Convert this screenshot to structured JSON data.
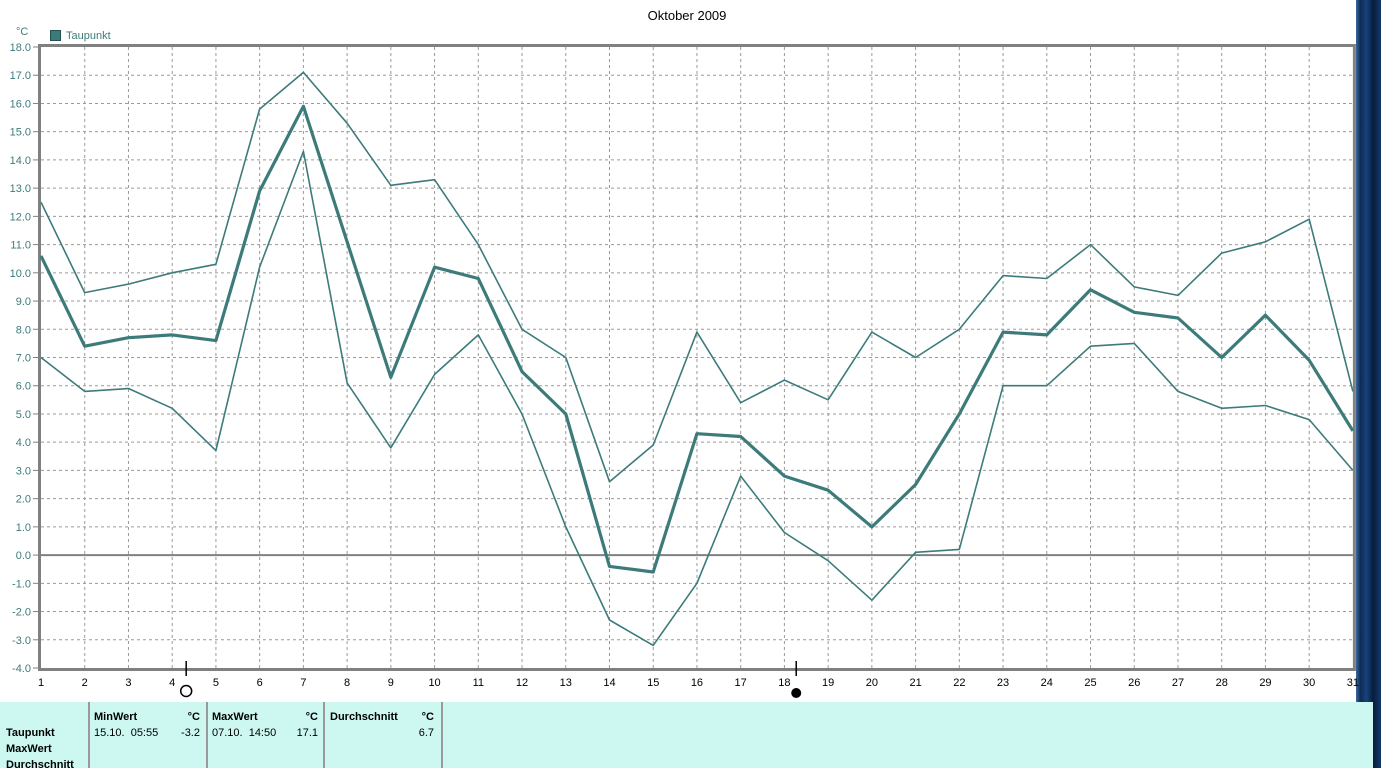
{
  "header": {
    "title": "Oktober 2009",
    "unit_label": "°C"
  },
  "legend": {
    "label": "Taupunkt",
    "color": "#3D7B7B"
  },
  "chart_data": {
    "type": "line",
    "title": "Oktober 2009",
    "ylabel": "°C",
    "ylim": [
      -4.0,
      18.0
    ],
    "ytick_step": 1.0,
    "grid": "dashed",
    "legend_position": "top-left",
    "line_color": "#3D7B7B",
    "grid_color": "#9a9a9a",
    "border_color": "#808080",
    "x": [
      1,
      2,
      3,
      4,
      5,
      6,
      7,
      8,
      9,
      10,
      11,
      12,
      13,
      14,
      15,
      16,
      17,
      18,
      19,
      20,
      21,
      22,
      23,
      24,
      25,
      26,
      27,
      28,
      29,
      30,
      31
    ],
    "xticks": [
      "1",
      "2",
      "3",
      "4",
      "5",
      "6",
      "7",
      "8",
      "9",
      "10",
      "11",
      "12",
      "13",
      "14",
      "15",
      "16",
      "17",
      "18",
      "19",
      "20",
      "21",
      "22",
      "23",
      "24",
      "25",
      "26",
      "27",
      "28",
      "29",
      "30",
      "31"
    ],
    "yticks": [
      "18.0",
      "17.0",
      "16.0",
      "15.0",
      "14.0",
      "13.0",
      "12.0",
      "11.0",
      "10.0",
      "9.0",
      "8.0",
      "7.0",
      "6.0",
      "5.0",
      "4.0",
      "3.0",
      "2.0",
      "1.0",
      "0.0",
      "-1.0",
      "-2.0",
      "-3.0",
      "-4.0"
    ],
    "zero_line": true,
    "series": [
      {
        "name": "taupunkt-max",
        "thick": false,
        "values": [
          12.5,
          9.3,
          9.6,
          10.0,
          10.3,
          15.8,
          17.1,
          15.3,
          13.1,
          13.3,
          11.0,
          8.0,
          7.0,
          2.6,
          3.9,
          7.9,
          5.4,
          6.2,
          5.5,
          7.9,
          7.0,
          8.0,
          9.9,
          9.8,
          11.0,
          9.5,
          9.2,
          10.7,
          11.1,
          11.9,
          5.8
        ]
      },
      {
        "name": "taupunkt-mittel",
        "thick": true,
        "values": [
          10.6,
          7.4,
          7.7,
          7.8,
          7.6,
          12.9,
          15.9,
          11.1,
          6.3,
          10.2,
          9.8,
          6.5,
          5.0,
          -0.4,
          -0.6,
          4.3,
          4.2,
          2.8,
          2.3,
          1.0,
          2.5,
          5.0,
          7.9,
          7.8,
          9.4,
          8.6,
          8.4,
          7.0,
          8.5,
          6.9,
          4.4
        ]
      },
      {
        "name": "taupunkt-min",
        "thick": false,
        "values": [
          7.0,
          5.8,
          5.9,
          5.2,
          3.7,
          10.2,
          14.3,
          6.1,
          3.8,
          6.4,
          7.8,
          5.0,
          1.0,
          -2.3,
          -3.2,
          -1.0,
          2.8,
          0.8,
          -0.2,
          -1.6,
          0.1,
          0.2,
          6.0,
          6.0,
          7.4,
          7.5,
          5.8,
          5.2,
          5.3,
          4.8,
          3.0
        ]
      }
    ],
    "markers": [
      {
        "symbol": "open-circle",
        "day": 4.32
      },
      {
        "symbol": "filled-circle",
        "day": 18.27
      }
    ]
  },
  "table": {
    "headers": {
      "min": "MinWert",
      "min_unit": "°C",
      "max": "MaxWert",
      "max_unit": "°C",
      "avg": "Durchschnitt",
      "avg_unit": "°C"
    },
    "rows": [
      {
        "label": "Taupunkt",
        "min_time": "15.10.  05:55",
        "min_value": "-3.2",
        "max_time": "07.10.  14:50",
        "max_value": "17.1",
        "avg_value": "6.7"
      },
      {
        "label": "MaxWert"
      },
      {
        "label": "Durchschnitt"
      }
    ]
  }
}
